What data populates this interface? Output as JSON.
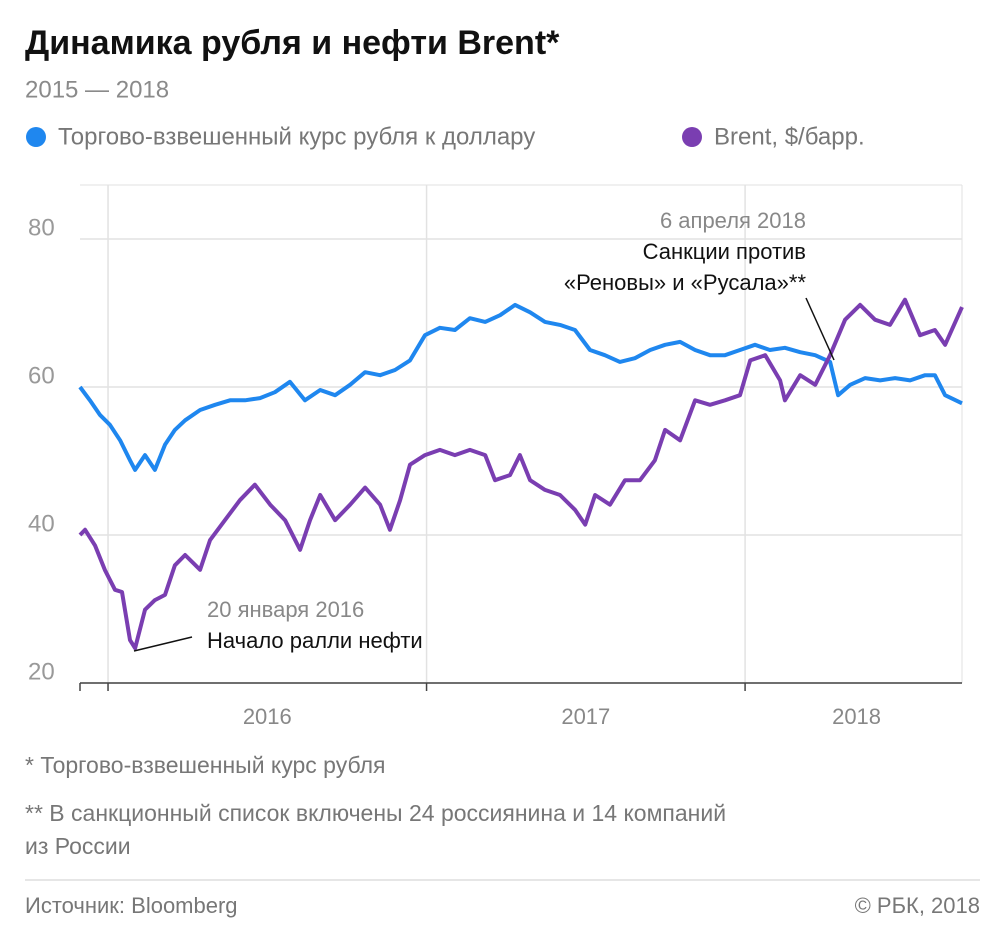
{
  "chart_data": {
    "type": "line",
    "title": "Динамика рубля и нефти Brent*",
    "subtitle": "2015 — 2018",
    "xlim": [
      2015.912,
      2018.681
    ],
    "xgrid": [
      2016,
      2017,
      2018
    ],
    "xticks": [
      {
        "value": 2016.5,
        "label": "2016"
      },
      {
        "value": 2017.5,
        "label": "2017"
      },
      {
        "value": 2018.35,
        "label": "2018"
      }
    ],
    "ylim": [
      20,
      87.3
    ],
    "yticks": [
      20,
      40,
      60,
      80
    ],
    "grid": true,
    "series": [
      {
        "name": "Торгово-взвешенный курс рубля к доллару",
        "color": "#1f87ef",
        "x": [
          2015.912,
          2015.943,
          2015.975,
          2016.006,
          2016.038,
          2016.069,
          2016.085,
          2016.116,
          2016.147,
          2016.179,
          2016.21,
          2016.242,
          2016.289,
          2016.336,
          2016.383,
          2016.43,
          2016.477,
          2016.524,
          2016.571,
          2016.618,
          2016.666,
          2016.713,
          2016.76,
          2016.807,
          2016.854,
          2016.901,
          2016.948,
          2016.995,
          2017.042,
          2017.089,
          2017.136,
          2017.184,
          2017.231,
          2017.278,
          2017.325,
          2017.372,
          2017.419,
          2017.466,
          2017.513,
          2017.56,
          2017.607,
          2017.654,
          2017.702,
          2017.749,
          2017.796,
          2017.843,
          2017.89,
          2017.937,
          2017.984,
          2018.031,
          2018.078,
          2018.125,
          2018.173,
          2018.22,
          2018.267,
          2018.292,
          2018.33,
          2018.377,
          2018.424,
          2018.471,
          2018.518,
          2018.565,
          2018.596,
          2018.628,
          2018.681
        ],
        "values": [
          60,
          58.2,
          56.2,
          54.9,
          52.8,
          50.1,
          48.8,
          50.8,
          48.8,
          52.2,
          54.2,
          55.5,
          56.9,
          57.6,
          58.2,
          58.2,
          58.5,
          59.3,
          60.7,
          58.2,
          59.6,
          58.9,
          60.3,
          62,
          61.6,
          62.3,
          63.6,
          67,
          68,
          67.7,
          69.3,
          68.8,
          69.7,
          71.1,
          70.1,
          68.8,
          68.4,
          67.7,
          65,
          64.3,
          63.4,
          63.9,
          65,
          65.7,
          66.1,
          65,
          64.3,
          64.3,
          65,
          65.7,
          65,
          65.3,
          64.7,
          64.3,
          63.4,
          58.9,
          60.3,
          61.2,
          60.9,
          61.2,
          60.9,
          61.6,
          61.6,
          58.9,
          57.8
        ]
      },
      {
        "name": "Brent, $/барр.",
        "color": "#7a3eb1",
        "x": [
          2015.912,
          2015.928,
          2015.959,
          2015.99,
          2016.022,
          2016.044,
          2016.069,
          2016.085,
          2016.116,
          2016.147,
          2016.179,
          2016.21,
          2016.242,
          2016.289,
          2016.32,
          2016.367,
          2016.414,
          2016.461,
          2016.509,
          2016.556,
          2016.603,
          2016.634,
          2016.666,
          2016.713,
          2016.76,
          2016.807,
          2016.854,
          2016.885,
          2016.917,
          2016.948,
          2016.995,
          2017.042,
          2017.089,
          2017.136,
          2017.184,
          2017.215,
          2017.262,
          2017.293,
          2017.325,
          2017.372,
          2017.419,
          2017.466,
          2017.498,
          2017.529,
          2017.576,
          2017.623,
          2017.67,
          2017.717,
          2017.749,
          2017.796,
          2017.843,
          2017.89,
          2017.937,
          2017.984,
          2018.016,
          2018.063,
          2018.11,
          2018.125,
          2018.173,
          2018.22,
          2018.267,
          2018.314,
          2018.361,
          2018.408,
          2018.455,
          2018.502,
          2018.549,
          2018.596,
          2018.628,
          2018.681
        ],
        "values": [
          40,
          40.7,
          38.6,
          35.3,
          32.6,
          32.3,
          25.8,
          24.7,
          29.9,
          31.2,
          31.9,
          35.9,
          37.3,
          35.3,
          39.3,
          42,
          44.7,
          46.8,
          44.1,
          42,
          38,
          42,
          45.4,
          42,
          44.1,
          46.4,
          44.1,
          40.7,
          44.7,
          49.5,
          50.8,
          51.5,
          50.8,
          51.5,
          50.8,
          47.4,
          48.1,
          50.8,
          47.4,
          46.1,
          45.4,
          43.4,
          41.4,
          45.4,
          44.1,
          47.4,
          47.4,
          50.1,
          54.2,
          52.8,
          58.2,
          57.6,
          58.2,
          58.9,
          63.6,
          64.3,
          60.9,
          58.2,
          61.6,
          60.3,
          64.3,
          69.1,
          71.1,
          69.1,
          68.4,
          71.8,
          67,
          67.7,
          65.7,
          70.8
        ]
      }
    ],
    "annotations": [
      {
        "date": "20 января 2016",
        "text": [
          "Начало ралли нефти"
        ]
      },
      {
        "date": "6 апреля 2018",
        "text": [
          "Санкции против",
          "«Реновы» и «Русала»**"
        ]
      }
    ],
    "footnotes": [
      "* Торгово-взвешенный курс рубля",
      "** В санкционный список включены 24 россиянина и 14 компаний",
      "из России"
    ],
    "source": "Источник: Bloomberg",
    "copyright": "© РБК, 2018"
  }
}
